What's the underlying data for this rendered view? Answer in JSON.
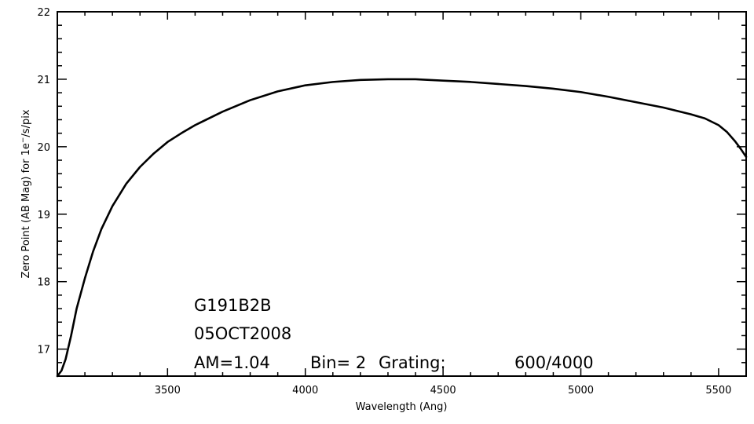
{
  "chart_data": {
    "type": "line",
    "title": "",
    "xlabel": "Wavelength (Ang)",
    "ylabel_parts": {
      "before": "Zero Point (AB Mag) for 1e",
      "superscript": "−",
      "after": "/s/pix"
    },
    "xlim": [
      3100,
      5600
    ],
    "ylim": [
      16.6,
      22
    ],
    "xticks": [
      3500,
      4000,
      4500,
      5000,
      5500
    ],
    "yticks": [
      17,
      18,
      19,
      20,
      21,
      22
    ],
    "grid": false,
    "annotations": {
      "star": "G191B2B",
      "date": "05OCT2008",
      "airmass": "AM=1.04",
      "bin": "Bin= 2",
      "grating_label": "Grating:",
      "grating_value": "600/4000"
    },
    "series": [
      {
        "x": [
          3100,
          3115,
          3130,
          3150,
          3170,
          3200,
          3230,
          3260,
          3300,
          3350,
          3400,
          3450,
          3500,
          3550,
          3600,
          3700,
          3800,
          3900,
          4000,
          4100,
          4200,
          4300,
          4400,
          4500,
          4600,
          4700,
          4800,
          4900,
          5000,
          5100,
          5200,
          5300,
          5400,
          5450,
          5500,
          5530,
          5560,
          5580,
          5600
        ],
        "y": [
          16.6,
          16.68,
          16.85,
          17.2,
          17.6,
          18.05,
          18.45,
          18.78,
          19.12,
          19.45,
          19.7,
          19.9,
          20.07,
          20.2,
          20.32,
          20.52,
          20.69,
          20.82,
          20.91,
          20.96,
          20.99,
          21.0,
          21.0,
          20.98,
          20.96,
          20.93,
          20.9,
          20.86,
          20.81,
          20.74,
          20.66,
          20.58,
          20.48,
          20.42,
          20.32,
          20.22,
          20.08,
          19.97,
          19.85
        ]
      }
    ]
  }
}
